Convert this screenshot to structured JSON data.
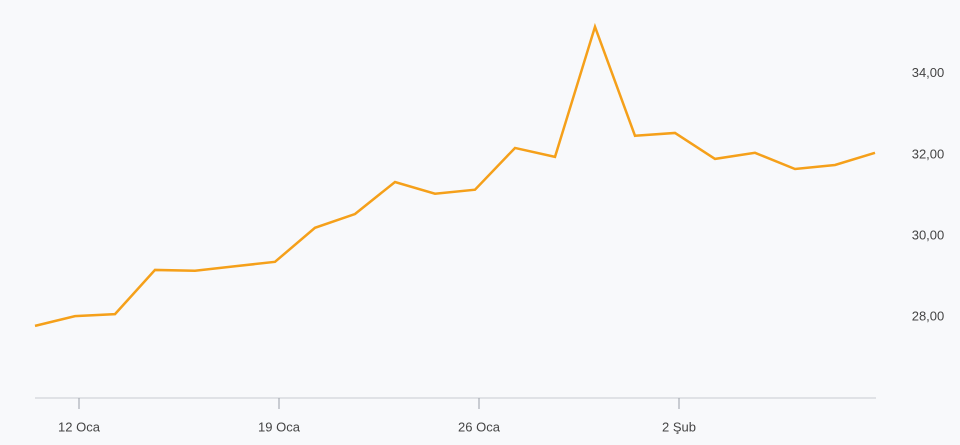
{
  "chart_data": {
    "type": "line",
    "categories": [
      null,
      "12 Oca",
      null,
      null,
      null,
      null,
      "19 Oca",
      null,
      null,
      null,
      null,
      "26 Oca",
      null,
      null,
      null,
      null,
      "2 Şub",
      null,
      null,
      null,
      null,
      null
    ],
    "series": [
      {
        "color": "#f5a01a",
        "values": [
          27.78,
          28.02,
          28.07,
          29.16,
          29.14,
          29.25,
          29.36,
          30.2,
          30.54,
          31.33,
          31.04,
          31.14,
          32.17,
          31.95,
          35.16,
          32.47,
          32.54,
          31.9,
          32.05,
          31.65,
          31.75,
          32.05
        ]
      }
    ],
    "ylim": [
      26,
      35.5
    ],
    "yticks": [
      {
        "value": 28,
        "label": "28,00"
      },
      {
        "value": 30,
        "label": "30,00"
      },
      {
        "value": 32,
        "label": "32,00"
      },
      {
        "value": 34,
        "label": "34,00"
      }
    ],
    "y_axis_side": "right",
    "grid": false
  }
}
